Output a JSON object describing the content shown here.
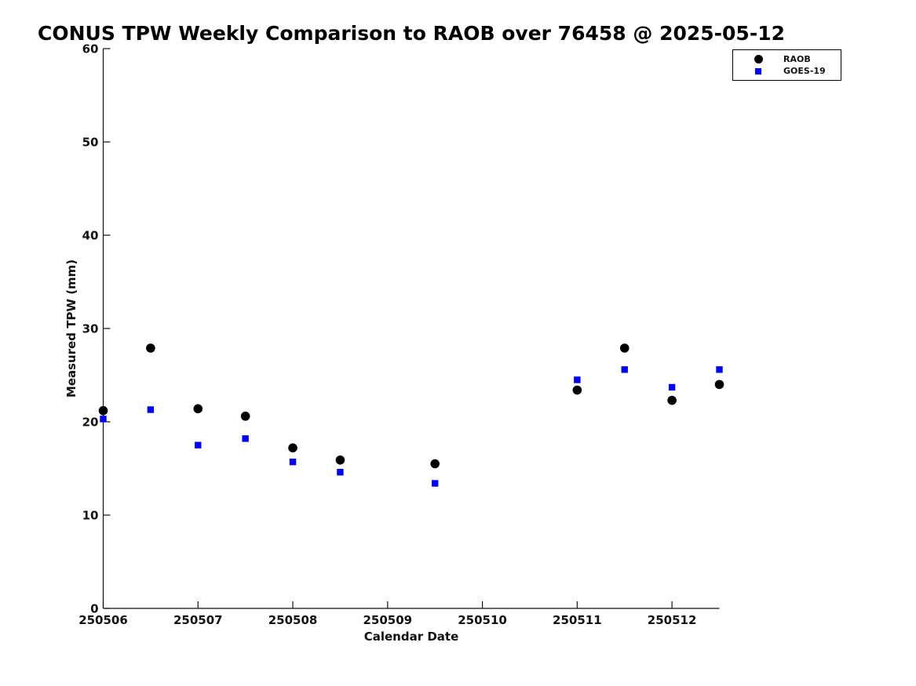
{
  "chart_data": {
    "type": "scatter",
    "title": "CONUS TPW Weekly Comparison to RAOB over 76458 @ 2025-05-12",
    "xlabel": "Calendar Date",
    "ylabel": "Measured TPW (mm)",
    "xlim": [
      250506,
      250512.5
    ],
    "ylim": [
      0,
      60
    ],
    "xticks": [
      250506,
      250507,
      250508,
      250509,
      250510,
      250511,
      250512
    ],
    "xtick_labels": [
      "250506",
      "250507",
      "250508",
      "250509",
      "250510",
      "250511",
      "250512"
    ],
    "yticks": [
      0,
      10,
      20,
      30,
      40,
      50,
      60
    ],
    "grid": false,
    "legend_position": "top-right",
    "axis_color": "#111111",
    "x": [
      250506.0,
      250506.5,
      250507.0,
      250507.5,
      250508.0,
      250508.5,
      250509.5,
      250511.0,
      250511.5,
      250512.0,
      250512.5
    ],
    "series": [
      {
        "name": "RAOB",
        "marker": "circle",
        "color": "#000000",
        "values": [
          21.2,
          27.9,
          21.4,
          20.6,
          17.2,
          15.9,
          15.5,
          23.4,
          27.9,
          22.3,
          24.0
        ]
      },
      {
        "name": "GOES-19",
        "marker": "square",
        "color": "#0000ff",
        "values": [
          20.3,
          21.3,
          17.5,
          18.2,
          15.7,
          14.6,
          13.4,
          24.5,
          25.6,
          23.7,
          25.6
        ]
      }
    ]
  }
}
